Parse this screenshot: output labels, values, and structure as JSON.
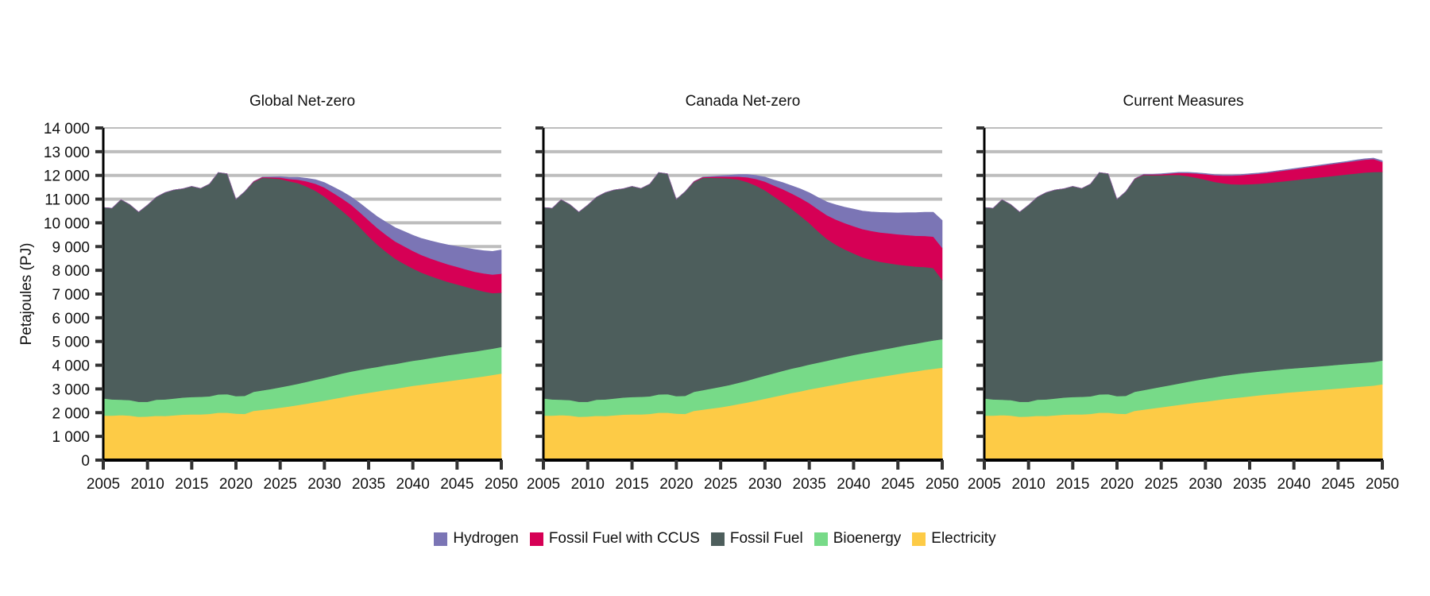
{
  "chart_data": {
    "type": "area",
    "stacked": true,
    "ylabel": "Petajoules (PJ)",
    "xlabel": "",
    "ylim": [
      0,
      14000
    ],
    "yticks": [
      0,
      1000,
      2000,
      3000,
      4000,
      5000,
      6000,
      7000,
      8000,
      9000,
      10000,
      11000,
      12000,
      13000,
      14000
    ],
    "ytick_labels": [
      "0",
      "1 000",
      "2 000",
      "3 000",
      "4 000",
      "5 000",
      "6 000",
      "7 000",
      "8 000",
      "9 000",
      "10 000",
      "11 000",
      "12 000",
      "13 000",
      "14 000"
    ],
    "xlim": [
      2005,
      2050
    ],
    "xticks": [
      2005,
      2010,
      2015,
      2020,
      2025,
      2030,
      2035,
      2040,
      2045,
      2050
    ],
    "xtick_labels": [
      "2005",
      "2010",
      "2015",
      "2020",
      "2025",
      "2030",
      "2035",
      "2040",
      "2045",
      "2050"
    ],
    "grid": "horizontal",
    "legend_position": "bottom-center",
    "legend": [
      {
        "name": "Hydrogen",
        "color": "#7B75B5"
      },
      {
        "name": "Fossil Fuel with CCUS",
        "color": "#D60055"
      },
      {
        "name": "Fossil Fuel",
        "color": "#4D5E5C"
      },
      {
        "name": "Bioenergy",
        "color": "#77DA88"
      },
      {
        "name": "Electricity",
        "color": "#FDCB46"
      }
    ],
    "stack_order_bottom_to_top": [
      "Electricity",
      "Bioenergy",
      "Fossil Fuel",
      "Fossil Fuel with CCUS",
      "Hydrogen"
    ],
    "x": [
      2005,
      2006,
      2007,
      2008,
      2009,
      2010,
      2011,
      2012,
      2013,
      2014,
      2015,
      2016,
      2017,
      2018,
      2019,
      2020,
      2021,
      2022,
      2023,
      2024,
      2025,
      2026,
      2027,
      2028,
      2029,
      2030,
      2031,
      2032,
      2033,
      2034,
      2035,
      2036,
      2037,
      2038,
      2039,
      2040,
      2041,
      2042,
      2043,
      2044,
      2045,
      2046,
      2047,
      2048,
      2049,
      2050
    ],
    "panels": [
      {
        "title": "Global Net-zero",
        "series": [
          {
            "name": "Electricity",
            "values": [
              1880,
              1880,
              1900,
              1880,
              1830,
              1840,
              1870,
              1860,
              1890,
              1920,
              1930,
              1930,
              1950,
              2000,
              2000,
              1960,
              1950,
              2080,
              2120,
              2160,
              2210,
              2260,
              2320,
              2380,
              2450,
              2510,
              2580,
              2650,
              2720,
              2780,
              2840,
              2900,
              2960,
              3010,
              3070,
              3130,
              3180,
              3230,
              3280,
              3330,
              3380,
              3430,
              3480,
              3530,
              3590,
              3650
            ]
          },
          {
            "name": "Bioenergy",
            "values": [
              720,
              680,
              650,
              650,
              630,
              620,
              680,
              700,
              710,
              720,
              730,
              740,
              740,
              770,
              780,
              740,
              760,
              800,
              820,
              840,
              860,
              880,
              900,
              920,
              940,
              960,
              980,
              1000,
              1010,
              1020,
              1030,
              1030,
              1040,
              1040,
              1050,
              1060,
              1060,
              1070,
              1080,
              1090,
              1090,
              1100,
              1100,
              1110,
              1110,
              1120
            ]
          },
          {
            "name": "Fossil Fuel",
            "values": [
              8050,
              8060,
              8430,
              8240,
              8000,
              8290,
              8540,
              8720,
              8790,
              8800,
              8880,
              8780,
              8950,
              9350,
              9290,
              8290,
              8610,
              8850,
              8960,
              8880,
              8780,
              8620,
              8460,
              8230,
              7960,
              7640,
              7250,
              6860,
              6460,
              6020,
              5560,
              5150,
              4770,
              4440,
              4160,
              3890,
              3660,
              3460,
              3270,
              3090,
              2940,
              2770,
              2620,
              2470,
              2340,
              2290
            ]
          },
          {
            "name": "Fossil Fuel with CCUS",
            "values": [
              0,
              0,
              0,
              0,
              0,
              0,
              0,
              0,
              0,
              0,
              0,
              0,
              0,
              0,
              0,
              0,
              0,
              20,
              30,
              40,
              60,
              90,
              140,
              220,
              300,
              380,
              450,
              520,
              580,
              630,
              680,
              700,
              720,
              730,
              740,
              740,
              740,
              740,
              740,
              740,
              740,
              740,
              740,
              760,
              780,
              800
            ]
          },
          {
            "name": "Hydrogen",
            "values": [
              0,
              0,
              0,
              0,
              0,
              0,
              0,
              0,
              0,
              0,
              0,
              0,
              0,
              0,
              0,
              0,
              0,
              0,
              0,
              20,
              40,
              70,
              100,
              130,
              170,
              210,
              250,
              290,
              330,
              380,
              430,
              480,
              530,
              580,
              620,
              660,
              700,
              740,
              780,
              820,
              860,
              900,
              940,
              960,
              980,
              1000
            ]
          }
        ]
      },
      {
        "title": "Canada Net-zero",
        "series": [
          {
            "name": "Electricity",
            "values": [
              1880,
              1880,
              1900,
              1880,
              1830,
              1840,
              1870,
              1860,
              1890,
              1920,
              1930,
              1930,
              1950,
              2000,
              2000,
              1960,
              1950,
              2080,
              2130,
              2180,
              2230,
              2290,
              2360,
              2430,
              2510,
              2590,
              2670,
              2750,
              2830,
              2900,
              2980,
              3050,
              3120,
              3190,
              3260,
              3330,
              3390,
              3450,
              3510,
              3570,
              3630,
              3690,
              3740,
              3800,
              3850,
              3900
            ]
          },
          {
            "name": "Bioenergy",
            "values": [
              720,
              680,
              650,
              650,
              630,
              620,
              680,
              700,
              710,
              720,
              730,
              740,
              740,
              770,
              780,
              740,
              760,
              800,
              820,
              840,
              860,
              880,
              900,
              920,
              950,
              970,
              990,
              1010,
              1030,
              1040,
              1050,
              1060,
              1070,
              1080,
              1090,
              1100,
              1110,
              1120,
              1130,
              1140,
              1150,
              1160,
              1170,
              1180,
              1190,
              1200
            ]
          },
          {
            "name": "Fossil Fuel",
            "values": [
              8050,
              8060,
              8430,
              8240,
              8000,
              8290,
              8540,
              8720,
              8790,
              8800,
              8880,
              8780,
              8950,
              9350,
              9290,
              8290,
              8610,
              8850,
              8950,
              8880,
              8800,
              8700,
              8570,
              8370,
              8110,
              7810,
              7460,
              7100,
              6730,
              6360,
              5960,
              5530,
              5130,
              4810,
              4530,
              4280,
              4050,
              3870,
              3720,
              3590,
              3460,
              3350,
              3250,
              3160,
              3060,
              2500
            ]
          },
          {
            "name": "Fossil Fuel with CCUS",
            "values": [
              0,
              0,
              0,
              0,
              0,
              0,
              0,
              0,
              0,
              0,
              0,
              0,
              0,
              0,
              0,
              0,
              0,
              20,
              30,
              40,
              60,
              80,
              120,
              200,
              280,
              370,
              460,
              560,
              650,
              750,
              840,
              930,
              1000,
              1060,
              1110,
              1150,
              1190,
              1220,
              1240,
              1260,
              1280,
              1290,
              1300,
              1310,
              1320,
              1350
            ]
          },
          {
            "name": "Hydrogen",
            "values": [
              0,
              0,
              0,
              0,
              0,
              0,
              0,
              0,
              0,
              0,
              0,
              0,
              0,
              0,
              0,
              0,
              0,
              0,
              0,
              20,
              40,
              60,
              90,
              120,
              150,
              190,
              230,
              280,
              330,
              380,
              440,
              500,
              560,
              620,
              670,
              720,
              760,
              800,
              840,
              870,
              900,
              940,
              970,
              1000,
              1030,
              1150
            ]
          }
        ]
      },
      {
        "title": "Current Measures",
        "series": [
          {
            "name": "Electricity",
            "values": [
              1880,
              1880,
              1900,
              1880,
              1830,
              1840,
              1870,
              1860,
              1890,
              1920,
              1930,
              1930,
              1950,
              2000,
              2000,
              1960,
              1950,
              2080,
              2130,
              2180,
              2230,
              2280,
              2330,
              2380,
              2430,
              2470,
              2520,
              2570,
              2610,
              2650,
              2690,
              2730,
              2770,
              2800,
              2840,
              2870,
              2900,
              2930,
              2960,
              2990,
              3020,
              3050,
              3080,
              3110,
              3140,
              3200
            ]
          },
          {
            "name": "Bioenergy",
            "values": [
              720,
              680,
              650,
              650,
              630,
              620,
              680,
              700,
              710,
              720,
              730,
              740,
              740,
              770,
              780,
              740,
              760,
              800,
              820,
              840,
              860,
              880,
              900,
              920,
              940,
              960,
              970,
              980,
              990,
              1000,
              1000,
              1000,
              1000,
              1000,
              1000,
              1000,
              1000,
              1000,
              1000,
              1000,
              1000,
              1000,
              1000,
              1000,
              1000,
              1000
            ]
          },
          {
            "name": "Fossil Fuel",
            "values": [
              8050,
              8060,
              8430,
              8240,
              8000,
              8290,
              8540,
              8720,
              8790,
              8800,
              8880,
              8780,
              8950,
              9350,
              9290,
              8290,
              8610,
              8970,
              9070,
              8990,
              8920,
              8860,
              8790,
              8670,
              8530,
              8390,
              8240,
              8120,
              8030,
              7970,
              7940,
              7920,
              7910,
              7920,
              7920,
              7930,
              7940,
              7950,
              7960,
              7970,
              7980,
              7990,
              8000,
              8010,
              8000,
              7950
            ]
          },
          {
            "name": "Fossil Fuel with CCUS",
            "values": [
              0,
              0,
              0,
              0,
              0,
              0,
              0,
              0,
              0,
              0,
              0,
              0,
              0,
              0,
              0,
              0,
              0,
              10,
              20,
              30,
              40,
              60,
              90,
              130,
              180,
              230,
              280,
              320,
              360,
              390,
              410,
              420,
              430,
              440,
              450,
              460,
              470,
              480,
              490,
              500,
              510,
              520,
              530,
              540,
              550,
              420
            ]
          },
          {
            "name": "Hydrogen",
            "values": [
              0,
              0,
              0,
              0,
              0,
              0,
              0,
              0,
              0,
              0,
              0,
              0,
              0,
              0,
              0,
              0,
              0,
              0,
              10,
              10,
              20,
              20,
              20,
              30,
              30,
              30,
              30,
              30,
              30,
              30,
              30,
              30,
              30,
              30,
              30,
              30,
              30,
              30,
              30,
              30,
              30,
              30,
              40,
              40,
              40,
              50
            ]
          }
        ]
      }
    ]
  }
}
